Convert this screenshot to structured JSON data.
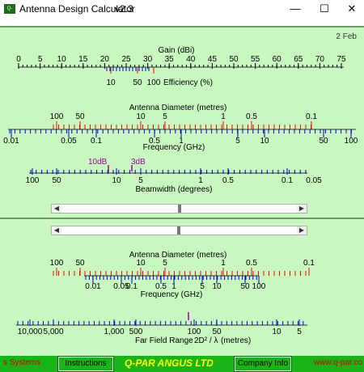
{
  "window": {
    "icon_text": "Q-PAR",
    "title": "Antenna Design Calculator",
    "version": "v2.3",
    "buttons": {
      "minimize": "—",
      "maximize": "☐",
      "close": "✕"
    }
  },
  "date_label": "2 Feb",
  "gain_scale": {
    "title": "Gain (dBi)",
    "ticks": [
      "0",
      "5",
      "10",
      "15",
      "20",
      "25",
      "30",
      "35",
      "40",
      "45",
      "50",
      "55",
      "60",
      "65",
      "70",
      "75"
    ],
    "efficiency_ticks": [
      "10",
      "50",
      "100"
    ],
    "efficiency_label": "Efficiency (%)"
  },
  "diameter_scale_top": {
    "title": "Antenna Diameter (metres)",
    "ticks": [
      "100",
      "50",
      "10",
      "5",
      "1",
      "0.5",
      "0.1"
    ]
  },
  "frequency_scale_top": {
    "ticks": [
      "0.01",
      "0.05",
      "0.1",
      "0.5",
      "1",
      "5",
      "10",
      "50",
      "100"
    ],
    "title": "Frequency (GHz)"
  },
  "beamwidth_scale": {
    "markers": [
      "10dB",
      "3dB"
    ],
    "ticks": [
      "100",
      "50",
      "10",
      "5",
      "1",
      "0.5",
      "0.1",
      "0.05"
    ],
    "title": "Beamwidth (degrees)"
  },
  "diameter_scale_bottom": {
    "title": "Antenna Diameter (metres)",
    "ticks": [
      "100",
      "50",
      "10",
      "5",
      "1",
      "0.5",
      "0.1"
    ]
  },
  "frequency_scale_bottom": {
    "ticks": [
      "0.01",
      "0.05",
      "0.1",
      "0.5",
      "1",
      "5",
      "10",
      "50",
      "100"
    ],
    "title": "Frequency (GHz)"
  },
  "far_field_scale": {
    "ticks": [
      "10,000",
      "5,000",
      "1,000",
      "500",
      "100",
      "50",
      "10",
      "5"
    ],
    "title": "Far Field Range",
    "formula": "2D² / λ",
    "unit": "(metres)"
  },
  "footer": {
    "left_text": "s Systems",
    "instructions_label": "Instructions",
    "brand": "Q-PAR ANGUS LTD",
    "company_info_label": "Company Info",
    "url": "www.q-par.co"
  },
  "colors": {
    "panel": "#c8f7c0",
    "footer": "#18b418",
    "brand_text": "#ffff00",
    "footer_red": "#cc0000",
    "scale_major": "#ff0000",
    "scale_minor": "#0000cc",
    "marker": "#a000a0"
  }
}
